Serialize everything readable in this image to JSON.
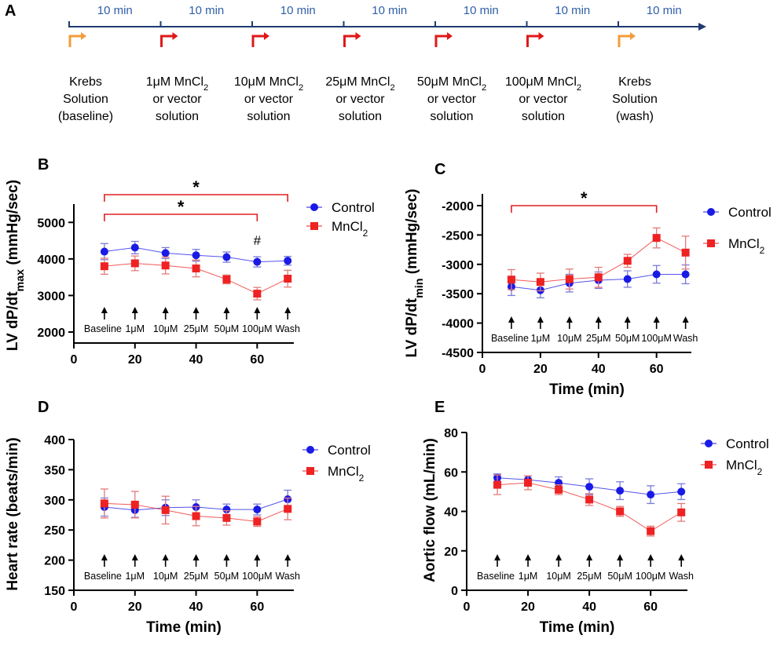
{
  "colors": {
    "control": "#1a1ae6",
    "mncl2": "#ee2222",
    "timeline": "#1f3a70",
    "interval_text": "#2f5ea8",
    "marker_red": "#e01818",
    "marker_orange": "#f39c3b",
    "sig_bracket": "#e02020"
  },
  "timeline": {
    "panel_label": "A",
    "interval_label": "10 min",
    "interval_count": 7,
    "stages": [
      {
        "lines": [
          "Krebs",
          "Solution",
          "(baseline)"
        ],
        "marker": "orange"
      },
      {
        "lines": [
          "1μM MnCl2",
          "or vector",
          "solution"
        ],
        "marker": "red"
      },
      {
        "lines": [
          "10μM MnCl2",
          "or vector",
          "solution"
        ],
        "marker": "red"
      },
      {
        "lines": [
          "25μM MnCl2",
          "or vector",
          "solution"
        ],
        "marker": "red"
      },
      {
        "lines": [
          "50μM MnCl2",
          "or vector",
          "solution"
        ],
        "marker": "red"
      },
      {
        "lines": [
          "100μM MnCl2",
          "or vector",
          "solution"
        ],
        "marker": "red"
      },
      {
        "lines": [
          "Krebs",
          "Solution",
          "(wash)"
        ],
        "marker": "orange"
      }
    ]
  },
  "dose_labels": [
    "Baseline",
    "1μM",
    "10μM",
    "25μM",
    "50μM",
    "100μM",
    "Wash"
  ],
  "legend": {
    "control": "Control",
    "mncl2": "MnCl2"
  },
  "chart_data": [
    {
      "panel": "B",
      "type": "line",
      "ylabel": "LV dP/dtmax (mmHg/sec)",
      "xlabel": "",
      "x": [
        10,
        20,
        30,
        40,
        50,
        60,
        70
      ],
      "xlim": [
        0,
        72
      ],
      "xticks": [
        0,
        20,
        40,
        60
      ],
      "ylim": [
        1700,
        5500
      ],
      "yticks": [
        2000,
        3000,
        4000,
        5000
      ],
      "series": [
        {
          "name": "Control",
          "values": [
            4200,
            4310,
            4160,
            4100,
            4050,
            3920,
            3950
          ],
          "err": [
            220,
            170,
            150,
            160,
            140,
            140,
            120
          ]
        },
        {
          "name": "MnCl2",
          "values": [
            3800,
            3880,
            3820,
            3740,
            3440,
            3050,
            3460
          ],
          "err": [
            220,
            200,
            230,
            230,
            120,
            170,
            230
          ]
        }
      ],
      "annotations": [
        {
          "type": "bracket",
          "x1": 10,
          "x2": 70,
          "label": "*"
        },
        {
          "type": "bracket",
          "x1": 10,
          "x2": 60,
          "label": "*"
        },
        {
          "type": "text",
          "x": 60,
          "label": "#"
        }
      ]
    },
    {
      "panel": "C",
      "type": "line",
      "ylabel": "LV dP/dtmin (mmHg/sec)",
      "xlabel": "Time (min)",
      "x": [
        10,
        20,
        30,
        40,
        50,
        60,
        70
      ],
      "xlim": [
        0,
        72
      ],
      "xticks": [
        0,
        20,
        40,
        60
      ],
      "ylim": [
        -4500,
        -1800
      ],
      "yticks": [
        -2000,
        -2500,
        -3000,
        -3500,
        -4000,
        -4500
      ],
      "series": [
        {
          "name": "Control",
          "values": [
            -3380,
            -3440,
            -3320,
            -3270,
            -3250,
            -3170,
            -3170
          ],
          "err": [
            150,
            130,
            150,
            140,
            140,
            150,
            160
          ]
        },
        {
          "name": "MnCl2",
          "values": [
            -3260,
            -3300,
            -3250,
            -3220,
            -2940,
            -2550,
            -2800
          ],
          "err": [
            170,
            150,
            170,
            170,
            110,
            170,
            280
          ]
        }
      ],
      "annotations": [
        {
          "type": "bracket",
          "x1": 10,
          "x2": 60,
          "label": "*"
        }
      ]
    },
    {
      "panel": "D",
      "type": "line",
      "ylabel": "Heart rate  (beats/min)",
      "xlabel": "Time (min)",
      "x": [
        10,
        20,
        30,
        40,
        50,
        60,
        70
      ],
      "xlim": [
        0,
        72
      ],
      "xticks": [
        0,
        20,
        40,
        60
      ],
      "ylim": [
        150,
        400
      ],
      "yticks": [
        150,
        200,
        250,
        300,
        350,
        400
      ],
      "series": [
        {
          "name": "Control",
          "values": [
            288,
            283,
            287,
            288,
            284,
            284,
            301
          ],
          "err": [
            15,
            12,
            13,
            12,
            9,
            9,
            15
          ]
        },
        {
          "name": "MnCl2",
          "values": [
            294,
            292,
            283,
            273,
            270,
            264,
            285
          ],
          "err": [
            24,
            22,
            23,
            16,
            12,
            8,
            18
          ]
        }
      ],
      "annotations": []
    },
    {
      "panel": "E",
      "type": "line",
      "ylabel": "Aortic flow (mL/min)",
      "xlabel": "Time (min)",
      "x": [
        10,
        20,
        30,
        40,
        50,
        60,
        70
      ],
      "xlim": [
        0,
        72
      ],
      "xticks": [
        0,
        20,
        40,
        60
      ],
      "ylim": [
        0,
        80
      ],
      "yticks": [
        0,
        20,
        40,
        60,
        80
      ],
      "series": [
        {
          "name": "Control",
          "values": [
            57,
            56,
            54.5,
            52.5,
            50.5,
            48.5,
            50
          ],
          "err": [
            2,
            2,
            3,
            4,
            4.5,
            4.5,
            4
          ]
        },
        {
          "name": "MnCl2",
          "values": [
            53.5,
            54.5,
            51,
            46,
            40,
            30,
            39.5
          ],
          "err": [
            5,
            3.5,
            2.5,
            3,
            2.5,
            2.5,
            4.5
          ]
        }
      ],
      "annotations": []
    }
  ]
}
